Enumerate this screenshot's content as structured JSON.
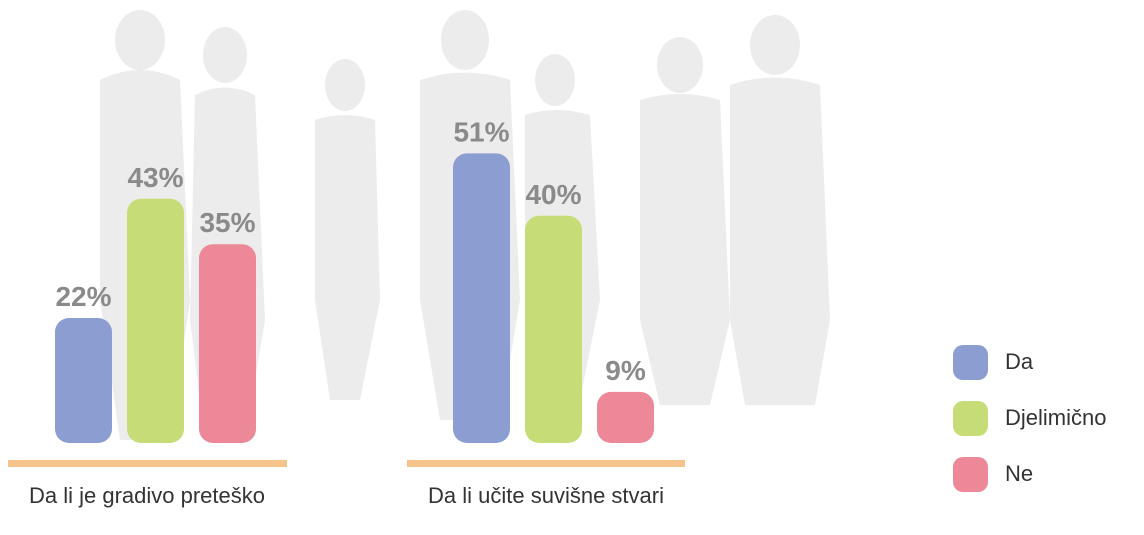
{
  "chart_data": {
    "type": "bar",
    "categories": [
      "Da li je gradivo preteško",
      "Da li učite suvišne stvari"
    ],
    "series": [
      {
        "name": "Da",
        "color": "#8b9dd1",
        "values": [
          22,
          51
        ],
        "value_labels": [
          "22%",
          "51%"
        ]
      },
      {
        "name": "Djelimično",
        "color": "#c5dc77",
        "values": [
          43,
          40
        ],
        "value_labels": [
          "43%",
          "40%"
        ]
      },
      {
        "name": "Ne",
        "color": "#ec8898",
        "values": [
          35,
          9
        ],
        "value_labels": [
          "35%",
          "9%"
        ]
      }
    ]
  }
}
